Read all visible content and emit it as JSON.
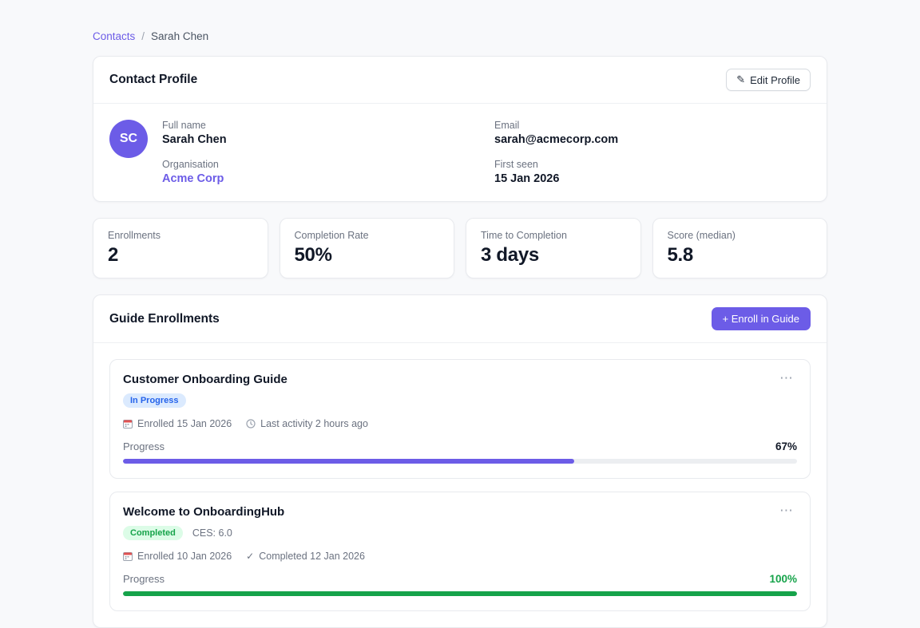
{
  "theme": {
    "accent": "#6c5ce7",
    "page_bg": "#f8f9fb",
    "in_progress_text": "#2563eb",
    "in_progress_bg": "#dbeafe",
    "completed_text": "#16a34a",
    "completed_bg": "#dcfce7"
  },
  "breadcrumb": {
    "parent": "Contacts",
    "separator": "/",
    "current": "Sarah Chen"
  },
  "profile": {
    "title": "Contact Profile",
    "edit_icon": "✎",
    "edit_label": "Edit Profile",
    "avatar_initials": "SC",
    "fields": {
      "full_name": {
        "label": "Full name",
        "value": "Sarah Chen"
      },
      "organisation": {
        "label": "Organisation",
        "value": "Acme Corp"
      },
      "email": {
        "label": "Email",
        "value": "sarah@acmecorp.com"
      },
      "first_seen": {
        "label": "First seen",
        "value": "15 Jan 2026"
      }
    }
  },
  "stats": [
    {
      "label": "Enrollments",
      "value": "2"
    },
    {
      "label": "Completion Rate",
      "value": "50%"
    },
    {
      "label": "Time to Completion",
      "value": "3 days"
    },
    {
      "label": "Score (median)",
      "value": "5.8"
    }
  ],
  "enrollments_section": {
    "title": "Guide Enrollments",
    "enroll_button": "+ Enroll in Guide"
  },
  "enrollments": [
    {
      "title": "Customer Onboarding Guide",
      "menu_icon": "⋯",
      "status": "In Progress",
      "status_color": "#2563eb",
      "status_bg": "#dbeafe",
      "enrolled": "Enrolled 15 Jan 2026",
      "last_activity": "Last activity 2 hours ago",
      "progress_label": "Progress",
      "progress_percent": 67,
      "progress_text": "67%",
      "progress_color": "#6c5ce7",
      "percent_text_color": "#111827"
    },
    {
      "title": "Welcome to OnboardingHub",
      "menu_icon": "⋯",
      "status": "Completed",
      "status_color": "#16a34a",
      "status_bg": "#dcfce7",
      "ces": "CES: 6.0",
      "enrolled": "Enrolled 10 Jan 2026",
      "check_icon": "✓",
      "completed": "Completed 12 Jan 2026",
      "progress_label": "Progress",
      "progress_percent": 100,
      "progress_text": "100%",
      "progress_color": "#16a34a",
      "percent_text_color": "#16a34a"
    }
  ]
}
